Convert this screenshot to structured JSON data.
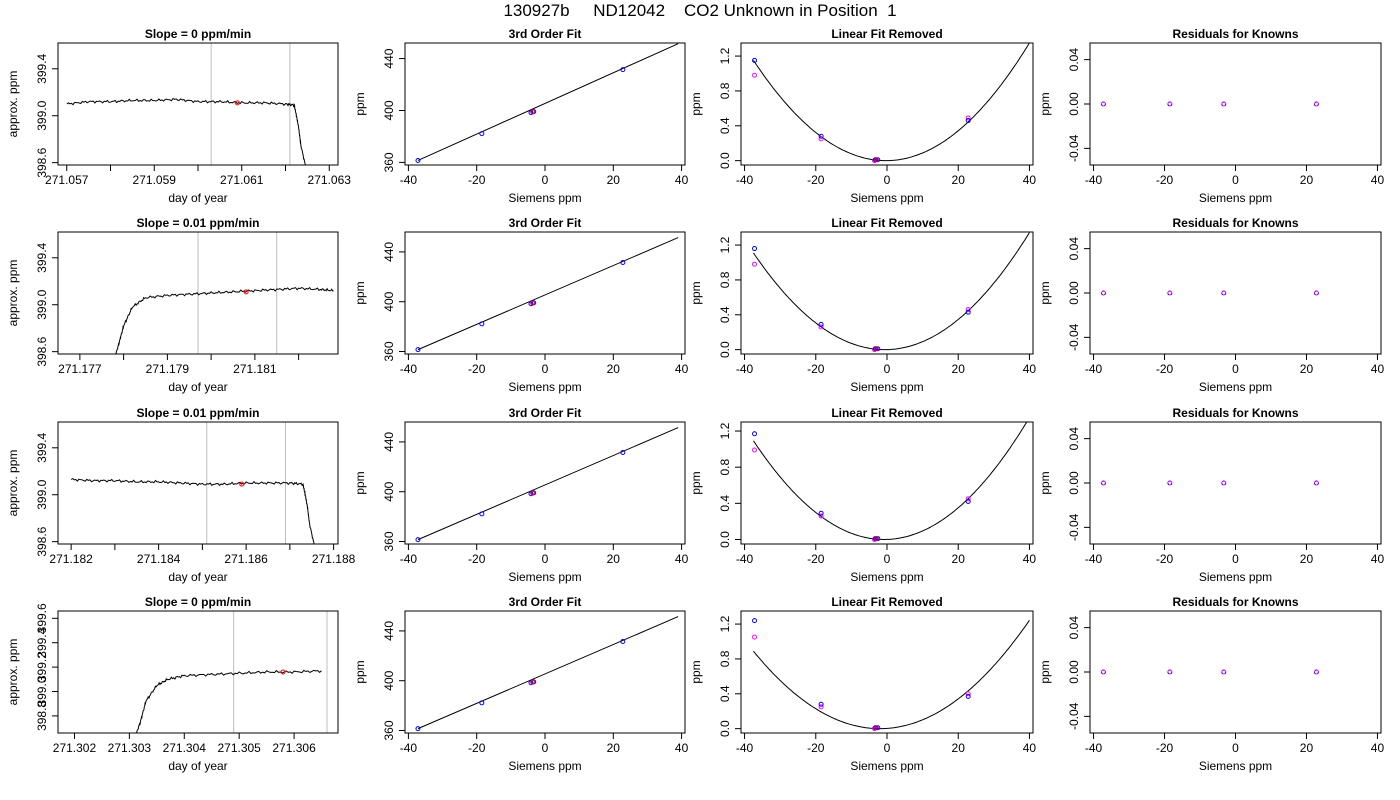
{
  "figure_title": "130927b     ND12042    CO2 Unknown in Position  1",
  "chart_data": [
    {
      "type": "line",
      "panel": "time-series",
      "row": 1,
      "title": "Slope =  0  ppm/min",
      "xlabel": "day of year",
      "ylabel": "approx. ppm",
      "xlim": [
        271.0568,
        271.0632
      ],
      "ylim": [
        398.58,
        399.62
      ],
      "xticks": [
        271.057,
        271.058,
        271.059,
        271.06,
        271.061,
        271.062,
        271.063
      ],
      "xtick_labels": [
        "271.057",
        "",
        "271.059",
        "",
        "271.061",
        "",
        "271.063"
      ],
      "yticks": [
        398.6,
        399.0,
        399.4
      ],
      "ytick_labels": [
        "398.6",
        "399.0",
        "399.4"
      ],
      "series": [
        {
          "x": [
            271.057,
            271.0575,
            271.058,
            271.0585,
            271.059,
            271.0595,
            271.06,
            271.0605,
            271.061,
            271.0615,
            271.062,
            271.0622,
            271.06225,
            271.0623,
            271.06235,
            271.0625
          ],
          "y": [
            399.1,
            399.12,
            399.12,
            399.13,
            399.13,
            399.14,
            399.12,
            399.12,
            399.11,
            399.11,
            399.1,
            399.09,
            399.0,
            398.9,
            398.75,
            398.5
          ]
        }
      ],
      "vlines": [
        271.0603,
        271.0621
      ],
      "highlight": {
        "x": 271.0609,
        "y": 399.11
      }
    },
    {
      "type": "scatter",
      "panel": "3rd-order-fit",
      "row": 1,
      "title": "3rd Order Fit",
      "xlabel": "Siemens ppm",
      "ylabel": "ppm",
      "xlim": [
        -41,
        41
      ],
      "ylim": [
        358,
        452
      ],
      "xticks": [
        -40,
        -20,
        0,
        20,
        40
      ],
      "yticks": [
        360,
        400,
        440
      ],
      "points": {
        "x": [
          -37.2,
          -18.5,
          -3.3,
          -4.1,
          22.8
        ],
        "y": [
          361.5,
          382.2,
          399.1,
          398.4,
          431.5
        ]
      },
      "highlight": {
        "x": -3.6,
        "y": 398.9
      },
      "fit_line": {
        "x": [
          -37.2,
          39
        ],
        "y": [
          361.5,
          451.5
        ]
      }
    },
    {
      "type": "scatter",
      "panel": "linear-fit-removed",
      "row": 1,
      "title": "Linear Fit Removed",
      "xlabel": "Siemens ppm",
      "ylabel": "ppm",
      "xlim": [
        -41,
        41
      ],
      "ylim": [
        -0.05,
        1.35
      ],
      "xticks": [
        -40,
        -20,
        0,
        20,
        40
      ],
      "yticks": [
        0.0,
        0.4,
        0.8,
        1.2
      ],
      "ytick_labels": [
        "0.0",
        "0.4",
        "0.8",
        "1.2"
      ],
      "points_blue": {
        "x": [
          -37.2,
          -18.5,
          -3.3,
          -2.6,
          22.8
        ],
        "y": [
          1.15,
          0.28,
          0.01,
          0.01,
          0.46
        ]
      },
      "points_magenta": {
        "x": [
          -37.2,
          -18.5,
          -3.5,
          22.8
        ],
        "y": [
          0.98,
          0.25,
          0.0,
          0.49
        ]
      },
      "highlight": {
        "x": -3.0,
        "y": 0.01
      },
      "curve": {
        "a": 0.000832,
        "c": 0.0,
        "x0": -0.3
      }
    },
    {
      "type": "scatter",
      "panel": "residuals",
      "row": 1,
      "title": "Residuals for Knowns",
      "xlabel": "Siemens ppm",
      "ylabel": "ppm",
      "xlim": [
        -41,
        41
      ],
      "ylim": [
        -0.055,
        0.055
      ],
      "xticks": [
        -40,
        -20,
        0,
        20,
        40
      ],
      "yticks": [
        -0.04,
        0.0,
        0.04
      ],
      "ytick_labels": [
        "-0.04",
        "0.00",
        "0.04"
      ],
      "points": {
        "x": [
          -37.2,
          -18.5,
          -3.3,
          22.8
        ],
        "y": [
          0,
          0,
          0,
          0
        ]
      }
    },
    {
      "type": "line",
      "panel": "time-series",
      "row": 2,
      "title": "Slope =  0.01  ppm/min",
      "xlabel": "day of year",
      "ylabel": "approx. ppm",
      "xlim": [
        271.1765,
        271.1829
      ],
      "ylim": [
        398.58,
        399.62
      ],
      "xticks": [
        271.177,
        271.178,
        271.179,
        271.18,
        271.181,
        271.182
      ],
      "xtick_labels": [
        "271.177",
        "",
        "271.179",
        "",
        "271.181",
        ""
      ],
      "yticks": [
        398.6,
        399.0,
        399.4
      ],
      "ytick_labels": [
        "398.6",
        "399.0",
        "399.4"
      ],
      "series": [
        {
          "x": [
            271.1778,
            271.1779,
            271.178,
            271.1782,
            271.1785,
            271.179,
            271.1795,
            271.18,
            271.1805,
            271.181,
            271.1815,
            271.182,
            271.1825,
            271.1828
          ],
          "y": [
            398.55,
            398.68,
            398.82,
            398.98,
            399.06,
            399.08,
            399.09,
            399.1,
            399.11,
            399.12,
            399.13,
            399.14,
            399.13,
            399.12
          ]
        }
      ],
      "vlines": [
        271.1797,
        271.1815
      ],
      "highlight": {
        "x": 271.1808,
        "y": 399.11
      }
    },
    {
      "type": "scatter",
      "panel": "3rd-order-fit",
      "row": 2,
      "title": "3rd Order Fit",
      "xlabel": "Siemens ppm",
      "ylabel": "ppm",
      "xlim": [
        -41,
        41
      ],
      "ylim": [
        358,
        456
      ],
      "xticks": [
        -40,
        -20,
        0,
        20,
        40
      ],
      "yticks": [
        360,
        400,
        440
      ],
      "points": {
        "x": [
          -37.2,
          -18.5,
          -3.3,
          -4.1,
          22.8
        ],
        "y": [
          361.5,
          382.2,
          399.1,
          398.4,
          431.5
        ]
      },
      "highlight": {
        "x": -3.6,
        "y": 398.9
      },
      "fit_line": {
        "x": [
          -37.2,
          39
        ],
        "y": [
          361.5,
          451.5
        ]
      }
    },
    {
      "type": "scatter",
      "panel": "linear-fit-removed",
      "row": 2,
      "title": "Linear Fit Removed",
      "xlabel": "Siemens ppm",
      "ylabel": "ppm",
      "xlim": [
        -41,
        41
      ],
      "ylim": [
        -0.05,
        1.35
      ],
      "xticks": [
        -40,
        -20,
        0,
        20,
        40
      ],
      "yticks": [
        0.0,
        0.4,
        0.8,
        1.2
      ],
      "ytick_labels": [
        "0.0",
        "0.4",
        "0.8",
        "1.2"
      ],
      "points_blue": {
        "x": [
          -37.2,
          -18.5,
          -3.3,
          -2.6,
          22.8
        ],
        "y": [
          1.16,
          0.29,
          0.01,
          0.01,
          0.43
        ]
      },
      "points_magenta": {
        "x": [
          -37.2,
          -18.5,
          -3.5,
          22.8
        ],
        "y": [
          0.98,
          0.26,
          0.0,
          0.46
        ]
      },
      "highlight": {
        "x": -3.0,
        "y": 0.01
      },
      "curve": {
        "a": 0.000815,
        "c": 0.0,
        "x0": -0.6
      }
    },
    {
      "type": "scatter",
      "panel": "residuals",
      "row": 2,
      "title": "Residuals for Knowns",
      "xlabel": "Siemens ppm",
      "ylabel": "ppm",
      "xlim": [
        -41,
        41
      ],
      "ylim": [
        -0.055,
        0.055
      ],
      "xticks": [
        -40,
        -20,
        0,
        20,
        40
      ],
      "yticks": [
        -0.04,
        0.0,
        0.04
      ],
      "ytick_labels": [
        "-0.04",
        "0.00",
        "0.04"
      ],
      "points": {
        "x": [
          -37.2,
          -18.5,
          -3.3,
          22.8
        ],
        "y": [
          0,
          0,
          0,
          0
        ]
      }
    },
    {
      "type": "line",
      "panel": "time-series",
      "row": 3,
      "title": "Slope =  0.01  ppm/min",
      "xlabel": "day of year",
      "ylabel": "approx. ppm",
      "xlim": [
        271.1817,
        271.1881
      ],
      "ylim": [
        398.58,
        399.62
      ],
      "xticks": [
        271.182,
        271.183,
        271.184,
        271.185,
        271.186,
        271.187,
        271.188
      ],
      "xtick_labels": [
        "271.182",
        "",
        "271.184",
        "",
        "271.186",
        "",
        "271.188"
      ],
      "yticks": [
        398.6,
        399.0,
        399.4
      ],
      "ytick_labels": [
        "398.6",
        "399.0",
        "399.4"
      ],
      "series": [
        {
          "x": [
            271.182,
            271.1825,
            271.183,
            271.1835,
            271.184,
            271.1845,
            271.185,
            271.1855,
            271.186,
            271.1865,
            271.187,
            271.1873,
            271.18735,
            271.1874,
            271.18745,
            271.1876
          ],
          "y": [
            399.13,
            399.12,
            399.12,
            399.11,
            399.11,
            399.1,
            399.09,
            399.09,
            399.1,
            399.1,
            399.1,
            399.09,
            399.0,
            398.9,
            398.75,
            398.5
          ]
        }
      ],
      "vlines": [
        271.1851,
        271.1869
      ],
      "highlight": {
        "x": 271.1859,
        "y": 399.09
      }
    },
    {
      "type": "scatter",
      "panel": "3rd-order-fit",
      "row": 3,
      "title": "3rd Order Fit",
      "xlabel": "Siemens ppm",
      "ylabel": "ppm",
      "xlim": [
        -41,
        41
      ],
      "ylim": [
        358,
        456
      ],
      "xticks": [
        -40,
        -20,
        0,
        20,
        40
      ],
      "yticks": [
        360,
        400,
        440
      ],
      "points": {
        "x": [
          -37.2,
          -18.5,
          -3.3,
          -4.1,
          22.8
        ],
        "y": [
          361.5,
          382.2,
          399.1,
          398.4,
          431.5
        ]
      },
      "highlight": {
        "x": -3.6,
        "y": 398.9
      },
      "fit_line": {
        "x": [
          -37.2,
          39
        ],
        "y": [
          361.5,
          451.5
        ]
      }
    },
    {
      "type": "scatter",
      "panel": "linear-fit-removed",
      "row": 3,
      "title": "Linear Fit Removed",
      "xlabel": "Siemens ppm",
      "ylabel": "ppm",
      "xlim": [
        -41,
        41
      ],
      "ylim": [
        -0.05,
        1.3
      ],
      "xticks": [
        -40,
        -20,
        0,
        20,
        40
      ],
      "yticks": [
        0.0,
        0.4,
        0.8,
        1.2
      ],
      "ytick_labels": [
        "0.0",
        "0.4",
        "0.8",
        "1.2"
      ],
      "points_blue": {
        "x": [
          -37.2,
          -18.5,
          -3.3,
          -2.6,
          22.8
        ],
        "y": [
          1.17,
          0.29,
          0.01,
          0.01,
          0.42
        ]
      },
      "points_magenta": {
        "x": [
          -37.2,
          -18.5,
          -3.5,
          22.8
        ],
        "y": [
          0.99,
          0.26,
          0.0,
          0.45
        ]
      },
      "highlight": {
        "x": -3.0,
        "y": 0.01
      },
      "curve": {
        "a": 0.000811,
        "c": 0.0,
        "x0": -0.8
      }
    },
    {
      "type": "scatter",
      "panel": "residuals",
      "row": 3,
      "title": "Residuals for Knowns",
      "xlabel": "Siemens ppm",
      "ylabel": "ppm",
      "xlim": [
        -41,
        41
      ],
      "ylim": [
        -0.055,
        0.055
      ],
      "xticks": [
        -40,
        -20,
        0,
        20,
        40
      ],
      "yticks": [
        -0.04,
        0.0,
        0.04
      ],
      "ytick_labels": [
        "-0.04",
        "0.00",
        "0.04"
      ],
      "points": {
        "x": [
          -37.2,
          -18.5,
          -3.3,
          22.8
        ],
        "y": [
          0,
          0,
          0,
          0
        ]
      }
    },
    {
      "type": "line",
      "panel": "time-series",
      "row": 4,
      "title": "Slope =  0  ppm/min",
      "xlabel": "day of year",
      "ylabel": "approx. ppm",
      "xlim": [
        271.3017,
        271.3068
      ],
      "ylim": [
        398.66,
        399.66
      ],
      "xticks": [
        271.302,
        271.303,
        271.304,
        271.305,
        271.306
      ],
      "xtick_labels": [
        "271.302",
        "271.303",
        "271.304",
        "271.305",
        "271.306"
      ],
      "yticks": [
        398.8,
        399.0,
        399.2,
        399.4,
        399.6
      ],
      "ytick_labels": [
        "398.8",
        "399.0",
        "399.2",
        "399.4",
        "399.6"
      ],
      "series": [
        {
          "x": [
            271.3031,
            271.3032,
            271.3033,
            271.3035,
            271.3037,
            271.304,
            271.3045,
            271.305,
            271.3055,
            271.306,
            271.3065
          ],
          "y": [
            398.62,
            398.75,
            398.92,
            399.05,
            399.1,
            399.13,
            399.14,
            399.15,
            399.16,
            399.16,
            399.17
          ]
        }
      ],
      "vlines": [
        271.3049,
        271.3066
      ],
      "highlight": {
        "x": 271.3058,
        "y": 399.16
      }
    },
    {
      "type": "scatter",
      "panel": "3rd-order-fit",
      "row": 4,
      "title": "3rd Order Fit",
      "xlabel": "Siemens ppm",
      "ylabel": "ppm",
      "xlim": [
        -41,
        41
      ],
      "ylim": [
        358,
        456
      ],
      "xticks": [
        -40,
        -20,
        0,
        20,
        40
      ],
      "yticks": [
        360,
        400,
        440
      ],
      "points": {
        "x": [
          -37.2,
          -18.5,
          -3.3,
          -4.1,
          22.8
        ],
        "y": [
          361.5,
          382.2,
          399.1,
          398.4,
          431.5
        ]
      },
      "highlight": {
        "x": -3.6,
        "y": 398.9
      },
      "fit_line": {
        "x": [
          -37.2,
          39
        ],
        "y": [
          361.5,
          451.5
        ]
      }
    },
    {
      "type": "scatter",
      "panel": "linear-fit-removed",
      "row": 4,
      "title": "Linear Fit Removed",
      "xlabel": "Siemens ppm",
      "ylabel": "ppm",
      "xlim": [
        -41,
        41
      ],
      "ylim": [
        -0.05,
        1.35
      ],
      "xticks": [
        -40,
        -20,
        0,
        20,
        40
      ],
      "yticks": [
        0.0,
        0.4,
        0.8,
        1.2
      ],
      "ytick_labels": [
        "0.0",
        "0.4",
        "0.8",
        "1.2"
      ],
      "points_blue": {
        "x": [
          -37.2,
          -18.5,
          -3.3,
          -2.6,
          22.8
        ],
        "y": [
          1.24,
          0.28,
          0.01,
          0.01,
          0.37
        ]
      },
      "points_magenta": {
        "x": [
          -37.2,
          -18.5,
          -3.5,
          22.8
        ],
        "y": [
          1.05,
          0.25,
          0.0,
          0.4
        ]
      },
      "highlight": {
        "x": -3.0,
        "y": 0.01
      },
      "curve": {
        "a": 0.000705,
        "c": 0.0,
        "x0": -2.0
      }
    },
    {
      "type": "scatter",
      "panel": "residuals",
      "row": 4,
      "title": "Residuals for Knowns",
      "xlabel": "Siemens ppm",
      "ylabel": "ppm",
      "xlim": [
        -41,
        41
      ],
      "ylim": [
        -0.055,
        0.055
      ],
      "xticks": [
        -40,
        -20,
        0,
        20,
        40
      ],
      "yticks": [
        -0.04,
        0.0,
        0.04
      ],
      "ytick_labels": [
        "-0.04",
        "0.00",
        "0.04"
      ],
      "points": {
        "x": [
          -37.2,
          -18.5,
          -3.3,
          22.8
        ],
        "y": [
          0,
          0,
          0,
          0
        ]
      }
    }
  ],
  "colors": {
    "axis": "#000000",
    "vline": "#bebebe",
    "point_blue": "#0000ff",
    "point_magenta": "#ff00ff",
    "highlight": "#ff0000",
    "curve": "#000000"
  }
}
